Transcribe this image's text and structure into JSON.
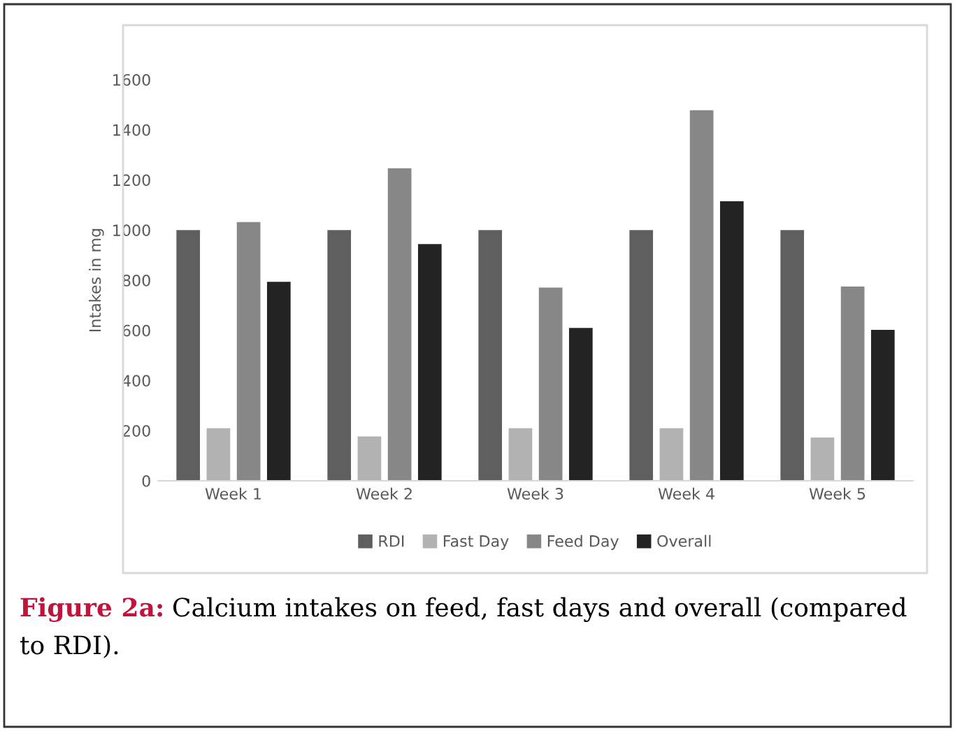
{
  "chart_data": {
    "type": "bar",
    "ylabel": "Intakes in mg",
    "categories": [
      "Week 1",
      "Week 2",
      "Week 3",
      "Week 4",
      "Week 5"
    ],
    "series": [
      {
        "name": "RDI",
        "color": "#5f5f5f",
        "values": [
          1000,
          1000,
          1000,
          1000,
          1000
        ]
      },
      {
        "name": "Fast Day",
        "color": "#b2b2b2",
        "values": [
          210,
          177,
          210,
          210,
          173
        ]
      },
      {
        "name": "Feed Day",
        "color": "#878787",
        "values": [
          1032,
          1247,
          771,
          1478,
          775
        ]
      },
      {
        "name": "Overall",
        "color": "#232323",
        "values": [
          794,
          944,
          610,
          1115,
          602
        ]
      }
    ],
    "ylim": [
      0,
      1600
    ],
    "yticks": [
      0,
      200,
      400,
      600,
      800,
      1000,
      1200,
      1400,
      1600
    ],
    "grid": false,
    "legend": "bottom",
    "annotations": [
      "Figure 2a:",
      "Calcium intakes on feed, fast days and overall (compared to RDI)."
    ]
  }
}
